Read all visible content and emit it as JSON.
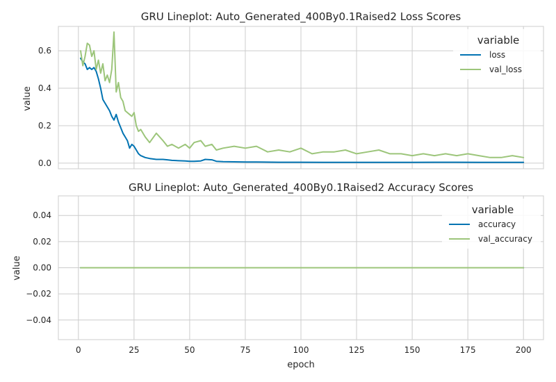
{
  "chart_data": [
    {
      "type": "line",
      "title": "GRU Lineplot: Auto_Generated_400By0.1Raised2 Loss Scores",
      "xlabel": "",
      "ylabel": "value",
      "xlim": [
        -9,
        209
      ],
      "ylim": [
        -0.03,
        0.73
      ],
      "xticks": [
        0,
        25,
        50,
        75,
        100,
        125,
        150,
        175,
        200
      ],
      "yticks": [
        0.0,
        0.2,
        0.4,
        0.6
      ],
      "ytick_labels": [
        "0.0",
        "0.2",
        "0.4",
        "0.6"
      ],
      "grid": true,
      "legend": {
        "title": "variable",
        "position": "top-right"
      },
      "series": [
        {
          "name": "loss",
          "color": "#0173b2",
          "x": [
            1,
            2,
            3,
            4,
            5,
            6,
            7,
            8,
            9,
            10,
            11,
            12,
            13,
            14,
            15,
            16,
            17,
            18,
            19,
            20,
            21,
            22,
            23,
            24,
            25,
            26,
            27,
            28,
            30,
            32,
            35,
            38,
            40,
            42,
            45,
            48,
            50,
            52,
            55,
            57,
            60,
            62,
            65,
            70,
            75,
            80,
            90,
            100,
            110,
            120,
            130,
            140,
            150,
            160,
            170,
            180,
            190,
            200
          ],
          "y": [
            0.56,
            0.54,
            0.53,
            0.5,
            0.51,
            0.5,
            0.51,
            0.49,
            0.45,
            0.4,
            0.34,
            0.32,
            0.3,
            0.28,
            0.25,
            0.23,
            0.26,
            0.22,
            0.19,
            0.16,
            0.14,
            0.12,
            0.08,
            0.1,
            0.09,
            0.07,
            0.05,
            0.04,
            0.03,
            0.025,
            0.02,
            0.02,
            0.018,
            0.015,
            0.013,
            0.012,
            0.01,
            0.01,
            0.012,
            0.02,
            0.018,
            0.01,
            0.008,
            0.007,
            0.006,
            0.006,
            0.005,
            0.005,
            0.004,
            0.004,
            0.004,
            0.004,
            0.004,
            0.005,
            0.005,
            0.004,
            0.004,
            0.004
          ]
        },
        {
          "name": "val_loss",
          "color": "#9cc57a",
          "x": [
            1,
            2,
            3,
            4,
            5,
            6,
            7,
            8,
            9,
            10,
            11,
            12,
            13,
            14,
            15,
            16,
            17,
            18,
            19,
            20,
            21,
            22,
            23,
            24,
            25,
            26,
            27,
            28,
            30,
            32,
            35,
            38,
            40,
            42,
            45,
            48,
            50,
            52,
            55,
            57,
            60,
            62,
            65,
            70,
            75,
            80,
            85,
            90,
            95,
            100,
            105,
            110,
            115,
            120,
            125,
            130,
            135,
            140,
            145,
            150,
            155,
            160,
            165,
            170,
            175,
            180,
            185,
            190,
            195,
            200
          ],
          "y": [
            0.6,
            0.52,
            0.57,
            0.64,
            0.63,
            0.57,
            0.6,
            0.5,
            0.55,
            0.48,
            0.53,
            0.44,
            0.47,
            0.43,
            0.5,
            0.7,
            0.38,
            0.43,
            0.35,
            0.33,
            0.28,
            0.27,
            0.26,
            0.25,
            0.27,
            0.2,
            0.17,
            0.18,
            0.14,
            0.11,
            0.16,
            0.12,
            0.09,
            0.1,
            0.08,
            0.1,
            0.08,
            0.11,
            0.12,
            0.09,
            0.1,
            0.07,
            0.08,
            0.09,
            0.08,
            0.09,
            0.06,
            0.07,
            0.06,
            0.08,
            0.05,
            0.06,
            0.06,
            0.07,
            0.05,
            0.06,
            0.07,
            0.05,
            0.05,
            0.04,
            0.05,
            0.04,
            0.05,
            0.04,
            0.05,
            0.04,
            0.03,
            0.03,
            0.04,
            0.03
          ]
        }
      ]
    },
    {
      "type": "line",
      "title": "GRU Lineplot: Auto_Generated_400By0.1Raised2 Accuracy Scores",
      "xlabel": "epoch",
      "ylabel": "value",
      "xlim": [
        -9,
        209
      ],
      "ylim": [
        -0.055,
        0.055
      ],
      "xticks": [
        0,
        25,
        50,
        75,
        100,
        125,
        150,
        175,
        200
      ],
      "yticks": [
        -0.04,
        -0.02,
        0.0,
        0.02,
        0.04
      ],
      "ytick_labels": [
        "−0.04",
        "−0.02",
        "0.00",
        "0.02",
        "0.04"
      ],
      "grid": true,
      "legend": {
        "title": "variable",
        "position": "top-right"
      },
      "series": [
        {
          "name": "accuracy",
          "color": "#0173b2",
          "x": [
            1,
            200
          ],
          "y": [
            0.0,
            0.0
          ]
        },
        {
          "name": "val_accuracy",
          "color": "#9cc57a",
          "x": [
            1,
            200
          ],
          "y": [
            0.0,
            0.0
          ]
        }
      ]
    }
  ]
}
